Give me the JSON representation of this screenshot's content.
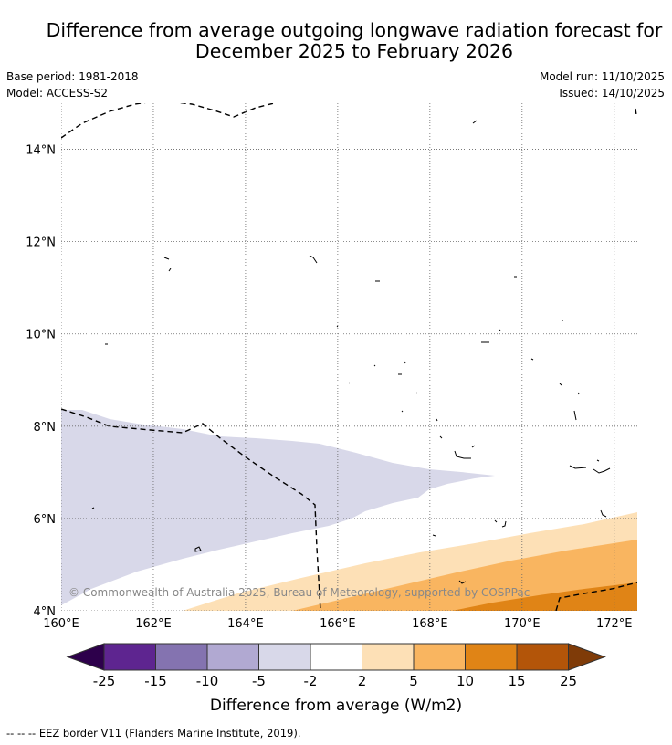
{
  "title": {
    "line1": "Difference from average outgoing longwave radiation forecast for",
    "line2": "December 2025 to February 2026"
  },
  "meta": {
    "base_period": "Base period: 1981-2018",
    "model": "Model: ACCESS-S2",
    "model_run": "Model run: 11/10/2025",
    "issued": "Issued: 14/10/2025"
  },
  "map": {
    "lon_range": [
      160,
      172.5
    ],
    "lat_range": [
      4,
      15
    ],
    "lon_ticks": [
      {
        "value": 160,
        "label": "160°E"
      },
      {
        "value": 162,
        "label": "162°E"
      },
      {
        "value": 164,
        "label": "164°E"
      },
      {
        "value": 166,
        "label": "166°E"
      },
      {
        "value": 168,
        "label": "168°E"
      },
      {
        "value": 170,
        "label": "170°E"
      },
      {
        "value": 172,
        "label": "172°E"
      }
    ],
    "lat_ticks": [
      {
        "value": 4,
        "label": "4°N"
      },
      {
        "value": 6,
        "label": "6°N"
      },
      {
        "value": 8,
        "label": "8°N"
      },
      {
        "value": 10,
        "label": "10°N"
      },
      {
        "value": 12,
        "label": "12°N"
      },
      {
        "value": 14,
        "label": "14°N"
      }
    ],
    "copyright": "© Commonwealth of Australia 2025, Bureau of Meteorology, supported by COSPPac"
  },
  "colorbar": {
    "label": "Difference from average (W/m2)",
    "tick_labels": [
      "-25",
      "-15",
      "-10",
      "-5",
      "-2",
      "2",
      "5",
      "10",
      "15",
      "25"
    ],
    "colors": [
      "#5e2590",
      "#8473b0",
      "#b1a9d2",
      "#d8d8e9",
      "#ffffff",
      "#fde0b6",
      "#f9b560",
      "#e08416",
      "#b35509"
    ],
    "under_color": "#2d004b",
    "over_color": "#7f3b08",
    "outline_color": "#333333"
  },
  "footer": "--  --  -- EEZ border V11 (Flanders Marine Institute, 2019)."
}
